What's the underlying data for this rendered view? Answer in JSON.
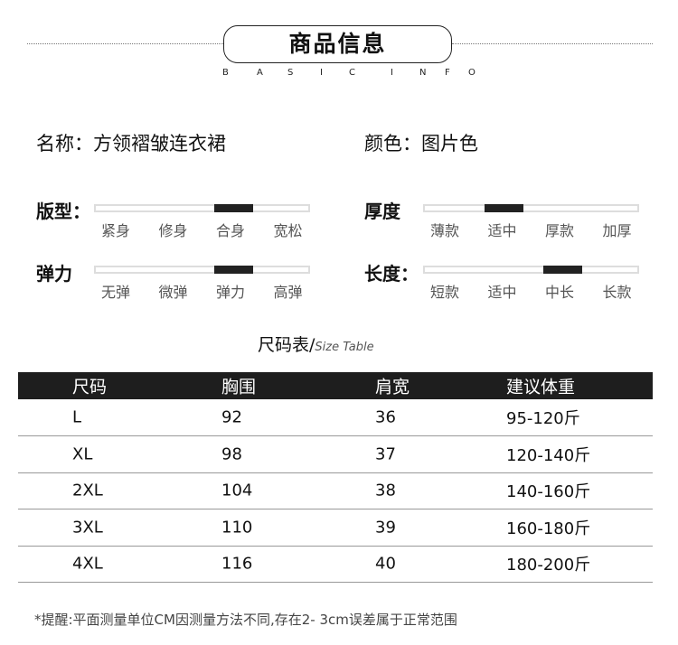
{
  "header": {
    "title": "商品信息",
    "subtitle": [
      "B",
      "A",
      "S",
      "I",
      "C",
      "I",
      "N",
      "F",
      "O"
    ]
  },
  "info": {
    "name": "名称：方领褶皱连衣裙",
    "color": "颜色：图片色"
  },
  "scales": [
    {
      "label": "版型：",
      "options": [
        "紧身",
        "修身",
        "合身",
        "宽松"
      ],
      "selected": "合身"
    },
    {
      "label": "厚度",
      "options": [
        "薄款",
        "适中",
        "厚款",
        "加厚"
      ],
      "selected": "适中"
    },
    {
      "label": "弹力",
      "options": [
        "无弹",
        "微弹",
        "弹力",
        "高弹"
      ],
      "selected": "弹力"
    },
    {
      "label": "长度：",
      "options": [
        "短款",
        "适中",
        "中长",
        "长款"
      ],
      "selected": "中长"
    }
  ],
  "table": {
    "title": "尺码表/",
    "title_en": "Size Table",
    "headers": [
      "尺码",
      "胸围",
      "肩宽",
      "建议体重"
    ],
    "rows": [
      [
        "L",
        "92",
        "36",
        "95-120斤"
      ],
      [
        "XL",
        "98",
        "37",
        "120-140斤"
      ],
      [
        "2XL",
        "104",
        "38",
        "140-160斤"
      ],
      [
        "3XL",
        "110",
        "39",
        "160-180斤"
      ],
      [
        "4XL",
        "116",
        "40",
        "180-200斤"
      ]
    ]
  },
  "note": "*提醒:平面测量单位CM因测量方法不同,存在2- 3cm误差属于正常范围"
}
